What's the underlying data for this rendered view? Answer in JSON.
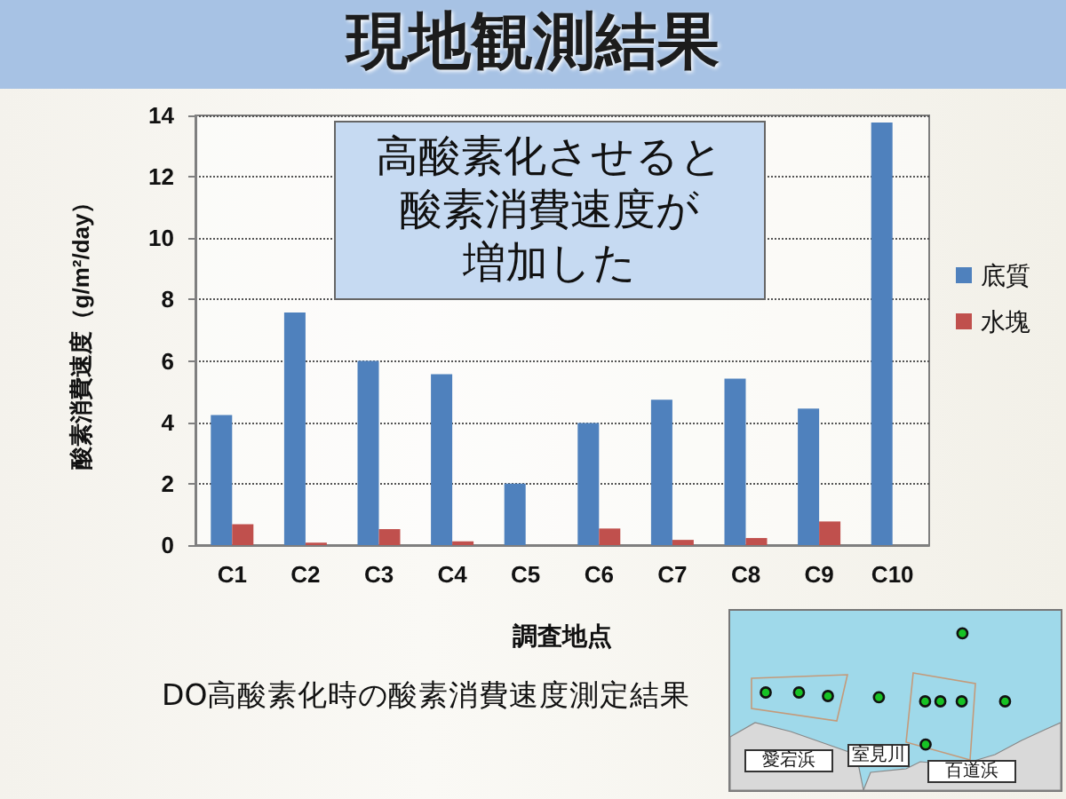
{
  "chart_data": {
    "type": "bar",
    "title": "現地観測結果",
    "xlabel": "調査地点",
    "ylabel": "酸素消費速度（g/m²/day）",
    "categories": [
      "C1",
      "C2",
      "C3",
      "C4",
      "C5",
      "C6",
      "C7",
      "C8",
      "C9",
      "C10"
    ],
    "series": [
      {
        "name": "底質",
        "color": "#4f81bd",
        "values": [
          4.24,
          7.58,
          6.0,
          5.57,
          2.0,
          3.98,
          4.74,
          5.42,
          4.45,
          13.77
        ]
      },
      {
        "name": "水塊",
        "color": "#c0504d",
        "values": [
          0.68,
          0.08,
          0.52,
          0.12,
          null,
          0.54,
          0.17,
          0.23,
          0.77,
          null
        ]
      }
    ],
    "ylim": [
      0,
      14
    ],
    "yticks": [
      0,
      2,
      4,
      6,
      8,
      10,
      12,
      14
    ],
    "grid": "y",
    "legend": "right",
    "annotations": [
      "高酸素化させると酸素消費速度が増加した",
      "DO高酸素化時の酸素消費速度測定結果",
      "愛宕浜",
      "室見川",
      "百道浜"
    ]
  }
}
